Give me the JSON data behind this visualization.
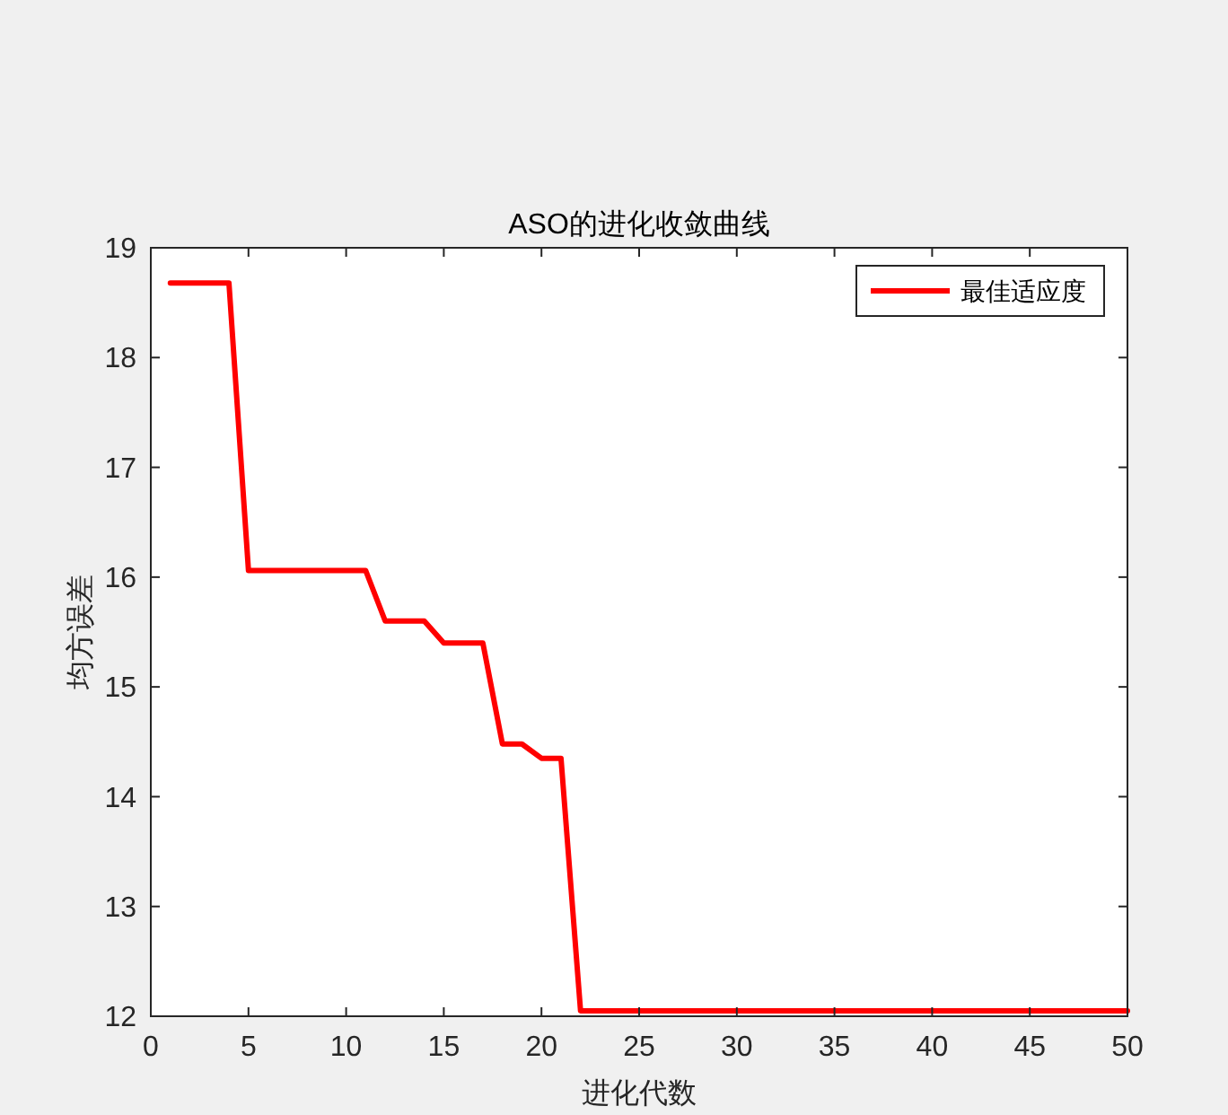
{
  "chart_data": {
    "type": "line",
    "title": "ASO的进化收敛曲线",
    "xlabel": "进化代数",
    "ylabel": "均方误差",
    "x": [
      1,
      4,
      5,
      11,
      12,
      14,
      15,
      17,
      18,
      19,
      20,
      21,
      22,
      50
    ],
    "series": [
      {
        "name": "最佳适应度",
        "color": "#ff0000",
        "values": [
          18.68,
          18.68,
          16.06,
          16.06,
          15.6,
          15.6,
          15.4,
          15.4,
          14.48,
          14.48,
          14.35,
          14.35,
          12.05,
          12.05
        ]
      }
    ],
    "xlim": [
      0,
      50
    ],
    "xticks": [
      0,
      5,
      10,
      15,
      20,
      25,
      30,
      35,
      40,
      45,
      50
    ],
    "ylim": [
      12,
      19
    ],
    "yticks": [
      12,
      13,
      14,
      15,
      16,
      17,
      18,
      19
    ],
    "legend": "top right",
    "grid": false,
    "marker": "none",
    "line_style": "solid"
  }
}
